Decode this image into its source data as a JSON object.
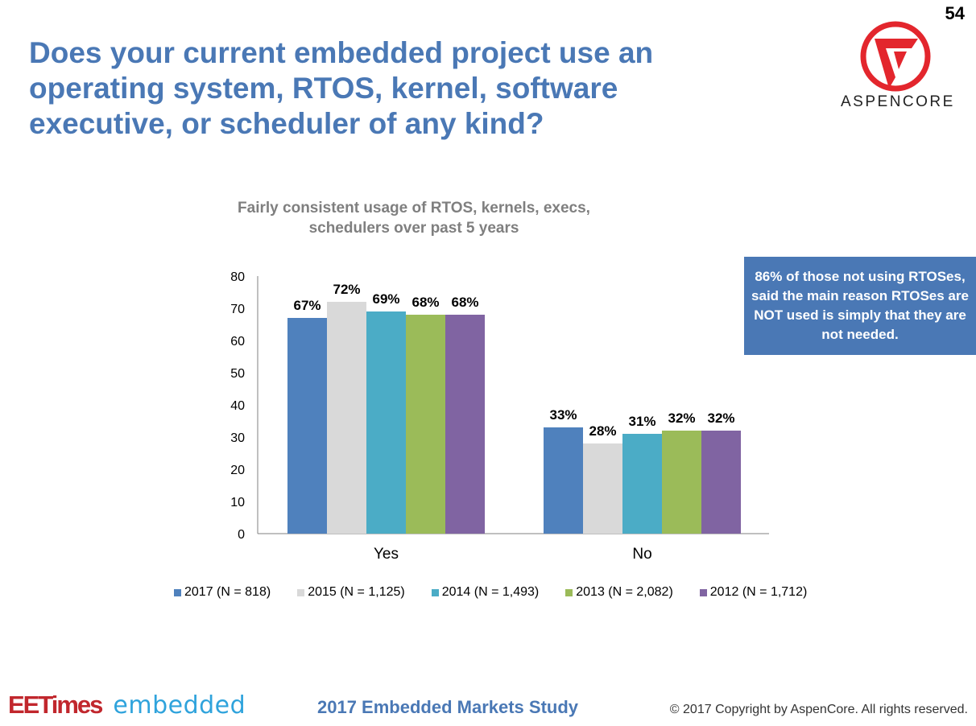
{
  "page_number": "54",
  "title": "Does your current embedded project use an operating system, RTOS, kernel, software executive, or scheduler of any kind?",
  "logo": {
    "brand": "ASPENCORE",
    "mark_color": "#e3262d"
  },
  "callout": {
    "text": "86% of those not using RTOSes, said the main reason RTOSes are NOT used is simply that they are not needed.",
    "color": "#4a78b5"
  },
  "chart_data": {
    "type": "bar",
    "title": "Fairly consistent usage of RTOS, kernels, execs, schedulers over past 5 years",
    "categories": [
      "Yes",
      "No"
    ],
    "series": [
      {
        "name": "2017 (N = 818)",
        "color": "#4f81bd",
        "values": [
          67,
          33
        ],
        "labels": [
          "67%",
          "33%"
        ]
      },
      {
        "name": "2015 (N = 1,125)",
        "color": "#d9d9d9",
        "values": [
          72,
          28
        ],
        "labels": [
          "72%",
          "28%"
        ]
      },
      {
        "name": "2014 (N = 1,493)",
        "color": "#4bacc6",
        "values": [
          69,
          31
        ],
        "labels": [
          "69%",
          "31%"
        ]
      },
      {
        "name": "2013 (N = 2,082)",
        "color": "#9bbb59",
        "values": [
          68,
          32
        ],
        "labels": [
          "68%",
          "32%"
        ]
      },
      {
        "name": "2012 (N = 1,712)",
        "color": "#8064a2",
        "values": [
          68,
          32
        ],
        "labels": [
          "68%",
          "32%"
        ]
      }
    ],
    "y_ticks": [
      "0",
      "10",
      "20",
      "30",
      "40",
      "50",
      "60",
      "70",
      "80"
    ],
    "ylim": [
      0,
      80
    ],
    "xlabel": "",
    "ylabel": "",
    "legend": "bottom"
  },
  "footer": {
    "brand_ee": "EETimes",
    "brand_embedded": "embedded",
    "study": "2017 Embedded Markets Study",
    "copyright": "© 2017 Copyright by AspenCore. All rights reserved."
  }
}
